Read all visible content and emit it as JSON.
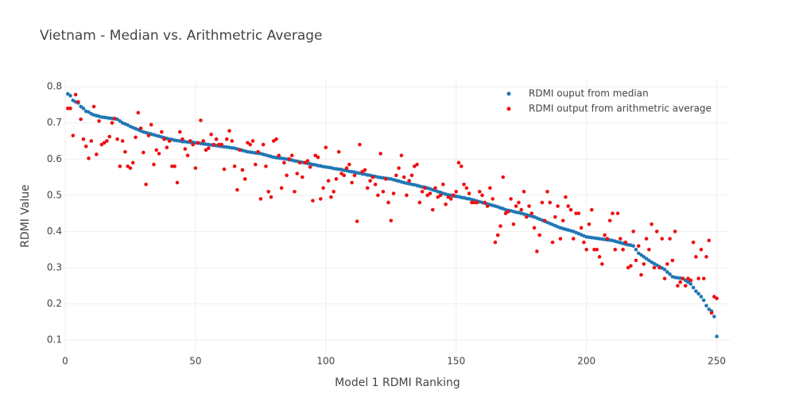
{
  "chart_data": {
    "type": "scatter",
    "title": "Vietnam - Median vs. Arithmetric Average",
    "x_label": "Model 1 RDMI Ranking",
    "y_label": "RDMI Value",
    "x": [
      1,
      2,
      3,
      4,
      5,
      6,
      7,
      8,
      9,
      10,
      11,
      12,
      13,
      14,
      15,
      16,
      17,
      18,
      19,
      20,
      21,
      22,
      23,
      24,
      25,
      26,
      27,
      28,
      29,
      30,
      31,
      32,
      33,
      34,
      35,
      36,
      37,
      38,
      39,
      40,
      41,
      42,
      43,
      44,
      45,
      46,
      47,
      48,
      49,
      50,
      51,
      52,
      53,
      54,
      55,
      56,
      57,
      58,
      59,
      60,
      61,
      62,
      63,
      64,
      65,
      66,
      67,
      68,
      69,
      70,
      71,
      72,
      73,
      74,
      75,
      76,
      77,
      78,
      79,
      80,
      81,
      82,
      83,
      84,
      85,
      86,
      87,
      88,
      89,
      90,
      91,
      92,
      93,
      94,
      95,
      96,
      97,
      98,
      99,
      100,
      101,
      102,
      103,
      104,
      105,
      106,
      107,
      108,
      109,
      110,
      111,
      112,
      113,
      114,
      115,
      116,
      117,
      118,
      119,
      120,
      121,
      122,
      123,
      124,
      125,
      126,
      127,
      128,
      129,
      130,
      131,
      132,
      133,
      134,
      135,
      136,
      137,
      138,
      139,
      140,
      141,
      142,
      143,
      144,
      145,
      146,
      147,
      148,
      149,
      150,
      151,
      152,
      153,
      154,
      155,
      156,
      157,
      158,
      159,
      160,
      161,
      162,
      163,
      164,
      165,
      166,
      167,
      168,
      169,
      170,
      171,
      172,
      173,
      174,
      175,
      176,
      177,
      178,
      179,
      180,
      181,
      182,
      183,
      184,
      185,
      186,
      187,
      188,
      189,
      190,
      191,
      192,
      193,
      194,
      195,
      196,
      197,
      198,
      199,
      200,
      201,
      202,
      203,
      204,
      205,
      206,
      207,
      208,
      209,
      210,
      211,
      212,
      213,
      214,
      215,
      216,
      217,
      218,
      219,
      220,
      221,
      222,
      223,
      224,
      225,
      226,
      227,
      228,
      229,
      230,
      231,
      232,
      233,
      234,
      235,
      236,
      237,
      238,
      239,
      240,
      241,
      242,
      243,
      244,
      245,
      246,
      247,
      248,
      249,
      250
    ],
    "series": [
      {
        "name": "RDMI ouput from median",
        "color": "#1f77b4",
        "values": [
          0.78,
          0.775,
          0.762,
          0.758,
          0.755,
          0.745,
          0.74,
          0.732,
          0.73,
          0.725,
          0.722,
          0.72,
          0.718,
          0.716,
          0.715,
          0.714,
          0.713,
          0.712,
          0.711,
          0.71,
          0.705,
          0.7,
          0.697,
          0.694,
          0.69,
          0.687,
          0.684,
          0.681,
          0.678,
          0.675,
          0.673,
          0.671,
          0.669,
          0.667,
          0.665,
          0.663,
          0.661,
          0.659,
          0.657,
          0.655,
          0.654,
          0.652,
          0.651,
          0.65,
          0.648,
          0.648,
          0.647,
          0.646,
          0.646,
          0.645,
          0.644,
          0.643,
          0.642,
          0.641,
          0.64,
          0.639,
          0.638,
          0.637,
          0.636,
          0.635,
          0.634,
          0.633,
          0.632,
          0.631,
          0.63,
          0.628,
          0.626,
          0.624,
          0.622,
          0.62,
          0.619,
          0.618,
          0.617,
          0.616,
          0.615,
          0.613,
          0.611,
          0.609,
          0.607,
          0.605,
          0.604,
          0.603,
          0.602,
          0.601,
          0.6,
          0.598,
          0.597,
          0.595,
          0.594,
          0.592,
          0.591,
          0.59,
          0.588,
          0.587,
          0.585,
          0.584,
          0.582,
          0.581,
          0.579,
          0.578,
          0.577,
          0.576,
          0.574,
          0.573,
          0.572,
          0.571,
          0.569,
          0.568,
          0.566,
          0.565,
          0.564,
          0.562,
          0.561,
          0.559,
          0.558,
          0.556,
          0.555,
          0.553,
          0.552,
          0.55,
          0.549,
          0.548,
          0.547,
          0.546,
          0.545,
          0.543,
          0.541,
          0.539,
          0.537,
          0.535,
          0.533,
          0.532,
          0.53,
          0.529,
          0.527,
          0.525,
          0.523,
          0.522,
          0.52,
          0.518,
          0.515,
          0.513,
          0.51,
          0.508,
          0.505,
          0.503,
          0.501,
          0.5,
          0.498,
          0.497,
          0.496,
          0.494,
          0.493,
          0.491,
          0.49,
          0.488,
          0.486,
          0.484,
          0.482,
          0.48,
          0.478,
          0.476,
          0.474,
          0.472,
          0.47,
          0.468,
          0.465,
          0.463,
          0.46,
          0.458,
          0.457,
          0.455,
          0.453,
          0.452,
          0.45,
          0.448,
          0.446,
          0.444,
          0.442,
          0.44,
          0.437,
          0.434,
          0.431,
          0.428,
          0.425,
          0.422,
          0.419,
          0.416,
          0.413,
          0.41,
          0.408,
          0.406,
          0.404,
          0.402,
          0.4,
          0.397,
          0.394,
          0.391,
          0.388,
          0.385,
          0.384,
          0.383,
          0.382,
          0.381,
          0.38,
          0.379,
          0.378,
          0.377,
          0.376,
          0.375,
          0.373,
          0.371,
          0.369,
          0.367,
          0.365,
          0.363,
          0.362,
          0.36,
          0.35,
          0.34,
          0.335,
          0.33,
          0.325,
          0.32,
          0.315,
          0.311,
          0.307,
          0.303,
          0.299,
          0.295,
          0.288,
          0.282,
          0.275,
          0.273,
          0.272,
          0.271,
          0.27,
          0.265,
          0.26,
          0.255,
          0.245,
          0.235,
          0.228,
          0.22,
          0.21,
          0.195,
          0.185,
          0.18,
          0.165,
          0.11
        ]
      },
      {
        "name": "RDMI output from arithmetric average",
        "color": "#ee1111",
        "values": [
          0.74,
          0.74,
          0.665,
          0.778,
          0.758,
          0.71,
          0.655,
          0.635,
          0.602,
          0.65,
          0.745,
          0.613,
          0.705,
          0.64,
          0.645,
          0.65,
          0.662,
          0.7,
          0.712,
          0.655,
          0.58,
          0.65,
          0.62,
          0.58,
          0.575,
          0.59,
          0.66,
          0.728,
          0.685,
          0.618,
          0.53,
          0.665,
          0.695,
          0.585,
          0.625,
          0.615,
          0.675,
          0.655,
          0.632,
          0.65,
          0.58,
          0.58,
          0.535,
          0.675,
          0.655,
          0.628,
          0.61,
          0.65,
          0.64,
          0.575,
          0.645,
          0.707,
          0.65,
          0.625,
          0.63,
          0.668,
          0.64,
          0.655,
          0.64,
          0.64,
          0.572,
          0.655,
          0.678,
          0.65,
          0.58,
          0.515,
          0.625,
          0.57,
          0.545,
          0.645,
          0.64,
          0.65,
          0.585,
          0.62,
          0.49,
          0.64,
          0.58,
          0.51,
          0.495,
          0.65,
          0.655,
          0.61,
          0.52,
          0.59,
          0.555,
          0.6,
          0.61,
          0.51,
          0.56,
          0.59,
          0.55,
          0.59,
          0.595,
          0.578,
          0.485,
          0.61,
          0.605,
          0.49,
          0.52,
          0.632,
          0.54,
          0.495,
          0.51,
          0.545,
          0.62,
          0.56,
          0.555,
          0.575,
          0.585,
          0.535,
          0.555,
          0.428,
          0.64,
          0.565,
          0.57,
          0.52,
          0.54,
          0.55,
          0.53,
          0.5,
          0.615,
          0.51,
          0.545,
          0.48,
          0.43,
          0.505,
          0.555,
          0.575,
          0.61,
          0.55,
          0.5,
          0.54,
          0.555,
          0.58,
          0.585,
          0.48,
          0.51,
          0.52,
          0.5,
          0.505,
          0.46,
          0.52,
          0.495,
          0.5,
          0.53,
          0.475,
          0.495,
          0.49,
          0.5,
          0.51,
          0.59,
          0.58,
          0.53,
          0.52,
          0.505,
          0.48,
          0.48,
          0.48,
          0.51,
          0.5,
          0.48,
          0.47,
          0.52,
          0.49,
          0.37,
          0.39,
          0.415,
          0.55,
          0.45,
          0.455,
          0.49,
          0.42,
          0.47,
          0.48,
          0.46,
          0.51,
          0.44,
          0.47,
          0.45,
          0.41,
          0.345,
          0.39,
          0.48,
          0.43,
          0.51,
          0.48,
          0.37,
          0.44,
          0.47,
          0.38,
          0.43,
          0.495,
          0.47,
          0.46,
          0.38,
          0.45,
          0.45,
          0.41,
          0.37,
          0.35,
          0.42,
          0.46,
          0.35,
          0.35,
          0.33,
          0.31,
          0.39,
          0.38,
          0.43,
          0.45,
          0.35,
          0.45,
          0.38,
          0.35,
          0.37,
          0.3,
          0.305,
          0.4,
          0.32,
          0.36,
          0.28,
          0.31,
          0.38,
          0.35,
          0.42,
          0.3,
          0.4,
          0.3,
          0.38,
          0.27,
          0.31,
          0.38,
          0.32,
          0.4,
          0.25,
          0.26,
          0.27,
          0.25,
          0.27,
          0.265,
          0.37,
          0.33,
          0.27,
          0.35,
          0.27,
          0.33,
          0.375,
          0.175,
          0.22,
          0.215
        ]
      }
    ],
    "xlim": [
      0,
      255
    ],
    "xticks": [
      0,
      50,
      100,
      150,
      200,
      250
    ],
    "ylim": [
      0.063,
      0.82
    ],
    "yticks": [
      0.1,
      0.2,
      0.3,
      0.4,
      0.5,
      0.6,
      0.7,
      0.8
    ],
    "grid": true,
    "legend": "top-right"
  }
}
